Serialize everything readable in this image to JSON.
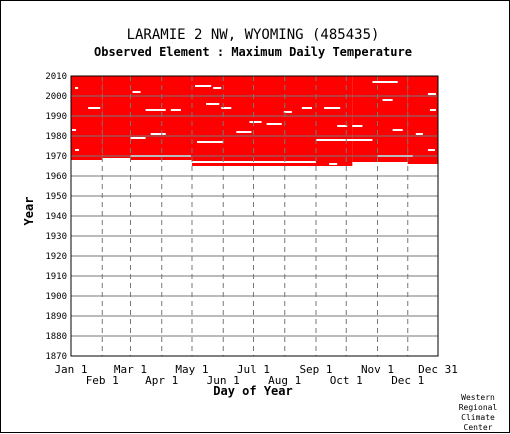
{
  "chart_data": {
    "type": "heatmap",
    "title": "LARAMIE 2 NW, WYOMING   (485435)",
    "subtitle": "Observed Element : Maximum Daily Temperature",
    "xlabel": "Day of Year",
    "ylabel": "Year",
    "ylim": [
      1870,
      2010
    ],
    "y_ticks": [
      1870,
      1880,
      1890,
      1900,
      1910,
      1920,
      1930,
      1940,
      1950,
      1960,
      1970,
      1980,
      1990,
      2000,
      2010
    ],
    "xlim": [
      1,
      365
    ],
    "x_ticks_upper": [
      {
        "label": "Jan 1",
        "day": 1
      },
      {
        "label": "Mar 1",
        "day": 60
      },
      {
        "label": "May 1",
        "day": 121
      },
      {
        "label": "Jul 1",
        "day": 182
      },
      {
        "label": "Sep 1",
        "day": 244
      },
      {
        "label": "Nov 1",
        "day": 305
      },
      {
        "label": "Dec 31",
        "day": 365
      }
    ],
    "x_ticks_lower": [
      {
        "label": "Feb 1",
        "day": 32
      },
      {
        "label": "Apr 1",
        "day": 91
      },
      {
        "label": "Jun 1",
        "day": 152
      },
      {
        "label": "Aug 1",
        "day": 213
      },
      {
        "label": "Oct 1",
        "day": 274
      },
      {
        "label": "Dec 1",
        "day": 335
      }
    ],
    "grid": true,
    "data_color": "#ff0000",
    "observed_blocks": [
      {
        "day_start": 1,
        "day_end": 32,
        "year_start": 1968,
        "year_end": 2010
      },
      {
        "day_start": 32,
        "day_end": 60,
        "year_start": 1969,
        "year_end": 2010
      },
      {
        "day_start": 60,
        "day_end": 121,
        "year_start": 1968,
        "year_end": 2010
      },
      {
        "day_start": 121,
        "day_end": 244,
        "year_start": 1965,
        "year_end": 2010
      },
      {
        "day_start": 244,
        "day_end": 280,
        "year_start": 1965,
        "year_end": 2010
      },
      {
        "day_start": 280,
        "day_end": 335,
        "year_start": 1967,
        "year_end": 2010
      },
      {
        "day_start": 335,
        "day_end": 365,
        "year_start": 1966,
        "year_end": 2010
      }
    ],
    "missing_segments": [
      {
        "day_start": 5,
        "day_end": 8,
        "year": 2004
      },
      {
        "day_start": 18,
        "day_end": 30,
        "year": 1994
      },
      {
        "day_start": 2,
        "day_end": 6,
        "year": 1983
      },
      {
        "day_start": 5,
        "day_end": 9,
        "year": 1973
      },
      {
        "day_start": 62,
        "day_end": 70,
        "year": 2002
      },
      {
        "day_start": 75,
        "day_end": 95,
        "year": 1993
      },
      {
        "day_start": 100,
        "day_end": 110,
        "year": 1993
      },
      {
        "day_start": 60,
        "day_end": 75,
        "year": 1979
      },
      {
        "day_start": 80,
        "day_end": 95,
        "year": 1981
      },
      {
        "day_start": 60,
        "day_end": 120,
        "year": 1970
      },
      {
        "day_start": 124,
        "day_end": 140,
        "year": 2005
      },
      {
        "day_start": 142,
        "day_end": 150,
        "year": 2004
      },
      {
        "day_start": 135,
        "day_end": 148,
        "year": 1996
      },
      {
        "day_start": 126,
        "day_end": 152,
        "year": 1977
      },
      {
        "day_start": 150,
        "day_end": 160,
        "year": 1994
      },
      {
        "day_start": 165,
        "day_end": 180,
        "year": 1982
      },
      {
        "day_start": 178,
        "day_end": 190,
        "year": 1987
      },
      {
        "day_start": 195,
        "day_end": 210,
        "year": 1986
      },
      {
        "day_start": 212,
        "day_end": 220,
        "year": 1992
      },
      {
        "day_start": 230,
        "day_end": 240,
        "year": 1994
      },
      {
        "day_start": 252,
        "day_end": 268,
        "year": 1994
      },
      {
        "day_start": 244,
        "day_end": 300,
        "year": 1978
      },
      {
        "day_start": 265,
        "day_end": 275,
        "year": 1985
      },
      {
        "day_start": 280,
        "day_end": 290,
        "year": 1985
      },
      {
        "day_start": 300,
        "day_end": 325,
        "year": 2007
      },
      {
        "day_start": 310,
        "day_end": 320,
        "year": 1998
      },
      {
        "day_start": 320,
        "day_end": 330,
        "year": 1983
      },
      {
        "day_start": 343,
        "day_end": 350,
        "year": 1981
      },
      {
        "day_start": 355,
        "day_end": 363,
        "year": 2001
      },
      {
        "day_start": 357,
        "day_end": 363,
        "year": 1993
      },
      {
        "day_start": 305,
        "day_end": 340,
        "year": 1970
      },
      {
        "day_start": 355,
        "day_end": 362,
        "year": 1973
      },
      {
        "day_start": 257,
        "day_end": 265,
        "year": 1966
      },
      {
        "day_start": 121,
        "day_end": 244,
        "year": 1967
      }
    ]
  },
  "footer": {
    "credit_lines": [
      "Western",
      "Regional",
      "Climate",
      "Center"
    ]
  }
}
